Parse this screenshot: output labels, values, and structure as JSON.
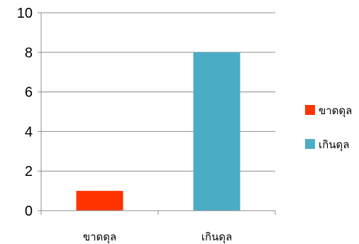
{
  "chart_data": {
    "type": "bar",
    "categories": [
      "ขาดดุล",
      "เกินดุล"
    ],
    "series": [
      {
        "name": "ขาดดุล",
        "color": "#ff3300",
        "values": [
          1,
          null
        ]
      },
      {
        "name": "เกินดุล",
        "color": "#4bacc6",
        "values": [
          null,
          8
        ]
      }
    ],
    "ylim": [
      0,
      10
    ],
    "yticks": [
      0,
      2,
      4,
      6,
      8,
      10
    ],
    "grid": true,
    "legend": "right",
    "title": "",
    "xlabel": "",
    "ylabel": ""
  }
}
